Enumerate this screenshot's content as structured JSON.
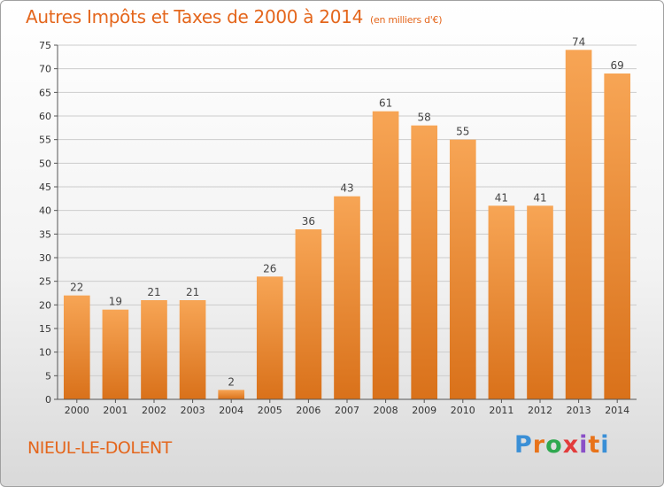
{
  "header": {
    "title": "Autres Impôts et Taxes de 2000 à 2014",
    "unit": "(en milliers d'€)"
  },
  "footer": {
    "commune": "NIEUL-LE-DOLENT",
    "logo_letters": [
      "P",
      "r",
      "o",
      "x",
      "i",
      "t",
      "i"
    ],
    "logo_colors": [
      "#3a8fd6",
      "#e8731a",
      "#2fa84f",
      "#e23b3b",
      "#8a4fc7",
      "#e8731a",
      "#3a8fd6"
    ]
  },
  "chart_data": {
    "type": "bar",
    "categories": [
      "2000",
      "2001",
      "2002",
      "2003",
      "2004",
      "2005",
      "2006",
      "2007",
      "2008",
      "2009",
      "2010",
      "2011",
      "2012",
      "2013",
      "2014"
    ],
    "values": [
      22,
      19,
      21,
      21,
      2,
      26,
      36,
      43,
      61,
      58,
      55,
      41,
      41,
      74,
      69
    ],
    "ylim": [
      0,
      75
    ],
    "yticks": [
      0,
      5,
      10,
      15,
      20,
      25,
      30,
      35,
      40,
      45,
      50,
      55,
      60,
      65,
      70,
      75
    ],
    "grid": true,
    "bar_color_top": "#f7a555",
    "bar_color_bottom": "#d9711a",
    "label_color": "#444444",
    "axis_color": "#555555",
    "grid_color": "#cccccc"
  }
}
